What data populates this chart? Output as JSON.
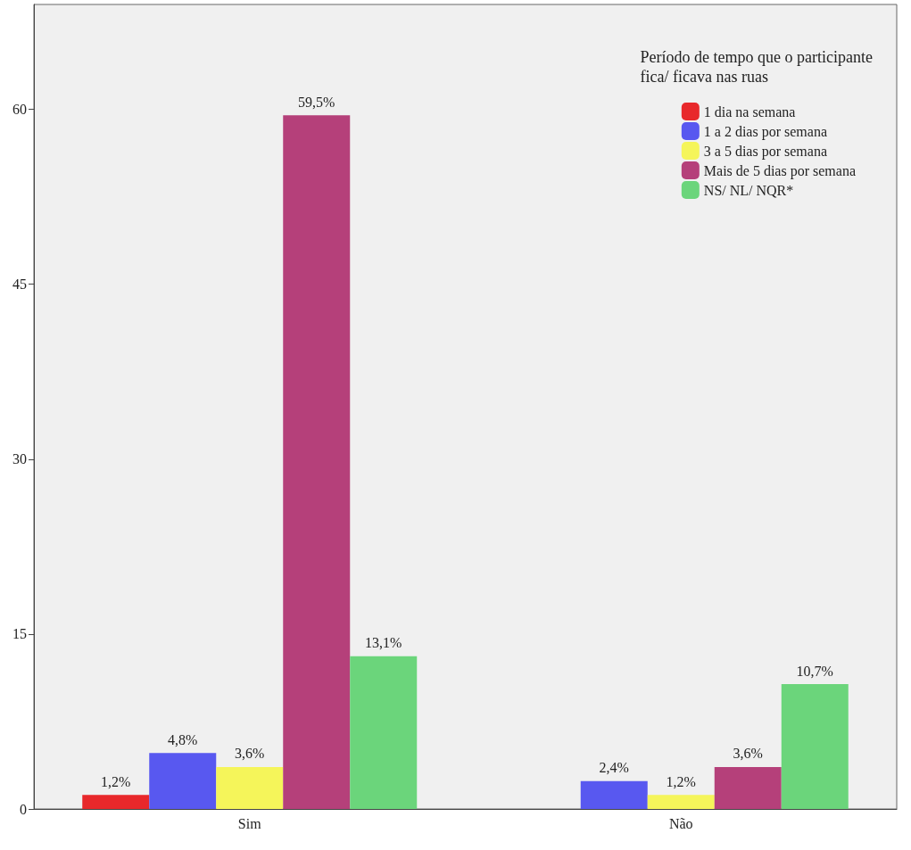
{
  "chart_data": {
    "type": "bar",
    "legend_title": "Período de tempo que o participante\nfica/ ficava nas ruas",
    "categories": [
      "Sim",
      "Não"
    ],
    "series": [
      {
        "name": "1 dia na semana",
        "color": "#e8282b",
        "values": [
          1.2,
          null
        ],
        "value_labels": [
          "1,2%",
          null
        ]
      },
      {
        "name": "1 a 2 dias por semana",
        "color": "#5858f0",
        "values": [
          4.8,
          2.4
        ],
        "value_labels": [
          "4,8%",
          "2,4%"
        ]
      },
      {
        "name": "3 a 5 dias por semana",
        "color": "#f5f55a",
        "values": [
          3.6,
          1.2
        ],
        "value_labels": [
          "3,6%",
          "1,2%"
        ]
      },
      {
        "name": "Mais de 5 dias por semana",
        "color": "#b5407a",
        "values": [
          59.5,
          3.6
        ],
        "value_labels": [
          "59,5%",
          "3,6%"
        ]
      },
      {
        "name": "NS/ NL/ NQR*",
        "color": "#6bd57b",
        "values": [
          13.1,
          10.7
        ],
        "value_labels": [
          "13,1%",
          "10,7%"
        ]
      }
    ],
    "ylim": [
      0,
      69
    ],
    "yticks": [
      0,
      15,
      30,
      45,
      60
    ],
    "grid": false,
    "legend": "top right"
  }
}
